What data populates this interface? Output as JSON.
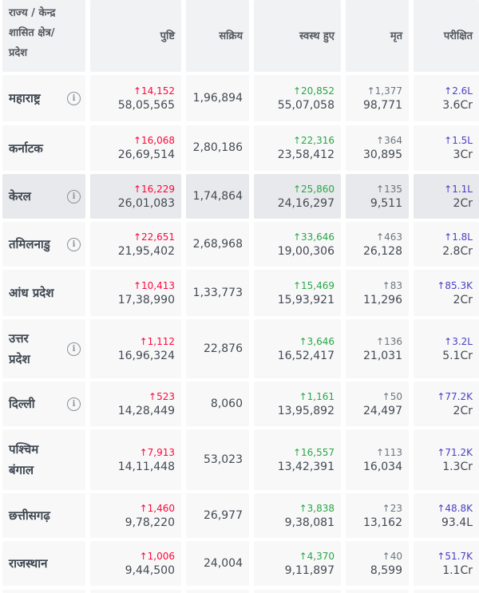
{
  "headers": [
    "राज्य / केन्द्र\nशासित क्षेत्र/\nप्रदेश",
    "पुष्टि",
    "सक्रिय",
    "स्वस्थ हुए",
    "मृत",
    "परीक्षित"
  ],
  "info_symbol": "i",
  "rows": [
    {
      "state": "महाराष्ट्र",
      "info": true,
      "confirmed_delta": "↑14,152",
      "confirmed": "58,05,565",
      "active": "1,96,894",
      "recovered_delta": "↑20,852",
      "recovered": "55,07,058",
      "deceased_delta": "↑1,377",
      "deceased": "98,771",
      "tested_delta": "↑2.6L",
      "tested": "3.6Cr"
    },
    {
      "state": "कर्नाटक",
      "info": false,
      "confirmed_delta": "↑16,068",
      "confirmed": "26,69,514",
      "active": "2,80,186",
      "recovered_delta": "↑22,316",
      "recovered": "23,58,412",
      "deceased_delta": "↑364",
      "deceased": "30,895",
      "tested_delta": "↑1.5L",
      "tested": "3Cr"
    },
    {
      "state": "केरल",
      "info": true,
      "highlight": true,
      "confirmed_delta": "↑16,229",
      "confirmed": "26,01,083",
      "active": "1,74,864",
      "recovered_delta": "↑25,860",
      "recovered": "24,16,297",
      "deceased_delta": "↑135",
      "deceased": "9,511",
      "tested_delta": "↑1.1L",
      "tested": "2Cr"
    },
    {
      "state": "तमिलनाडु",
      "info": true,
      "confirmed_delta": "↑22,651",
      "confirmed": "21,95,402",
      "active": "2,68,968",
      "recovered_delta": "↑33,646",
      "recovered": "19,00,306",
      "deceased_delta": "↑463",
      "deceased": "26,128",
      "tested_delta": "↑1.8L",
      "tested": "2.8Cr"
    },
    {
      "state": "आंध प्रदेश",
      "info": false,
      "confirmed_delta": "↑10,413",
      "confirmed": "17,38,990",
      "active": "1,33,773",
      "recovered_delta": "↑15,469",
      "recovered": "15,93,921",
      "deceased_delta": "↑83",
      "deceased": "11,296",
      "tested_delta": "↑85.3K",
      "tested": "2Cr"
    },
    {
      "state": "उत्तर\nप्रदेश",
      "info": true,
      "confirmed_delta": "↑1,112",
      "confirmed": "16,96,324",
      "active": "22,876",
      "recovered_delta": "↑3,646",
      "recovered": "16,52,417",
      "deceased_delta": "↑136",
      "deceased": "21,031",
      "tested_delta": "↑3.2L",
      "tested": "5.1Cr"
    },
    {
      "state": "दिल्ली",
      "info": true,
      "confirmed_delta": "↑523",
      "confirmed": "14,28,449",
      "active": "8,060",
      "recovered_delta": "↑1,161",
      "recovered": "13,95,892",
      "deceased_delta": "↑50",
      "deceased": "24,497",
      "tested_delta": "↑77.2K",
      "tested": "2Cr"
    },
    {
      "state": "पश्चिम\nबंगाल",
      "info": false,
      "confirmed_delta": "↑7,913",
      "confirmed": "14,11,448",
      "active": "53,023",
      "recovered_delta": "↑16,557",
      "recovered": "13,42,391",
      "deceased_delta": "↑113",
      "deceased": "16,034",
      "tested_delta": "↑71.2K",
      "tested": "1.3Cr"
    },
    {
      "state": "छत्तीसगढ़",
      "info": false,
      "confirmed_delta": "↑1,460",
      "confirmed": "9,78,220",
      "active": "26,977",
      "recovered_delta": "↑3,838",
      "recovered": "9,38,081",
      "deceased_delta": "↑23",
      "deceased": "13,162",
      "tested_delta": "↑48.8K",
      "tested": "93.4L"
    },
    {
      "state": "राजस्थान",
      "info": false,
      "confirmed_delta": "↑1,006",
      "confirmed": "9,44,500",
      "active": "24,004",
      "recovered_delta": "↑4,370",
      "recovered": "9,11,897",
      "deceased_delta": "↑40",
      "deceased": "8,599",
      "tested_delta": "↑51.7K",
      "tested": "1.1Cr"
    }
  ]
}
